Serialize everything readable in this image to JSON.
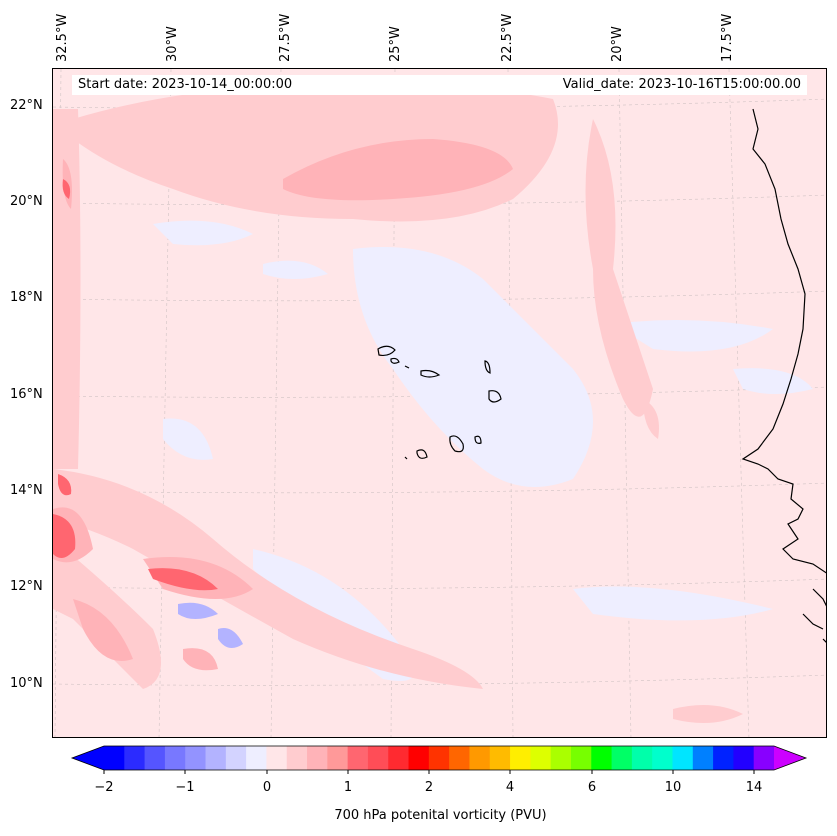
{
  "header": {
    "start_date": "Start date: 2023-10-14_00:00:00",
    "valid_date": "Valid_date: 2023-10-16T15:00:00.00"
  },
  "map": {
    "lon_labels": [
      "32.5°W",
      "30°W",
      "27.5°W",
      "25°W",
      "22.5°W",
      "20°W",
      "17.5°W"
    ],
    "lat_labels": [
      "22°N",
      "20°N",
      "18°N",
      "16°N",
      "14°N",
      "12°N",
      "10°N"
    ],
    "colors": {
      "background": "#ffe6e8",
      "light_pink": "#ffcccf",
      "medium_pink": "#ffb3b8",
      "red": "#ff6670",
      "light_blue": "#eeeeff",
      "blue": "#b3b3ff",
      "coastline": "#000000"
    }
  },
  "colorbar": {
    "label": "700 hPa potenital vorticity (PVU)",
    "tick_labels": [
      "−2",
      "−1",
      "0",
      "1",
      "2",
      "4",
      "6",
      "10",
      "14"
    ],
    "colors": [
      "#0000ff",
      "#2b2bff",
      "#5555ff",
      "#7878ff",
      "#9393ff",
      "#b3b3ff",
      "#d3d3ff",
      "#eeeeff",
      "#ffe6e8",
      "#ffcccf",
      "#ffb3b8",
      "#ff9999",
      "#ff6670",
      "#ff4d57",
      "#ff2a30",
      "#ff0000",
      "#ff3300",
      "#ff6600",
      "#ff9900",
      "#ffbb00",
      "#ffee00",
      "#ddff00",
      "#aaff00",
      "#77ff00",
      "#00ff00",
      "#00ff66",
      "#00ffaa",
      "#00ffcc",
      "#00e5ff",
      "#0080ff",
      "#0022ff",
      "#2200ff",
      "#8800ff"
    ],
    "extend_low_color": "#0000ff",
    "extend_high_color": "#cc00ff"
  }
}
